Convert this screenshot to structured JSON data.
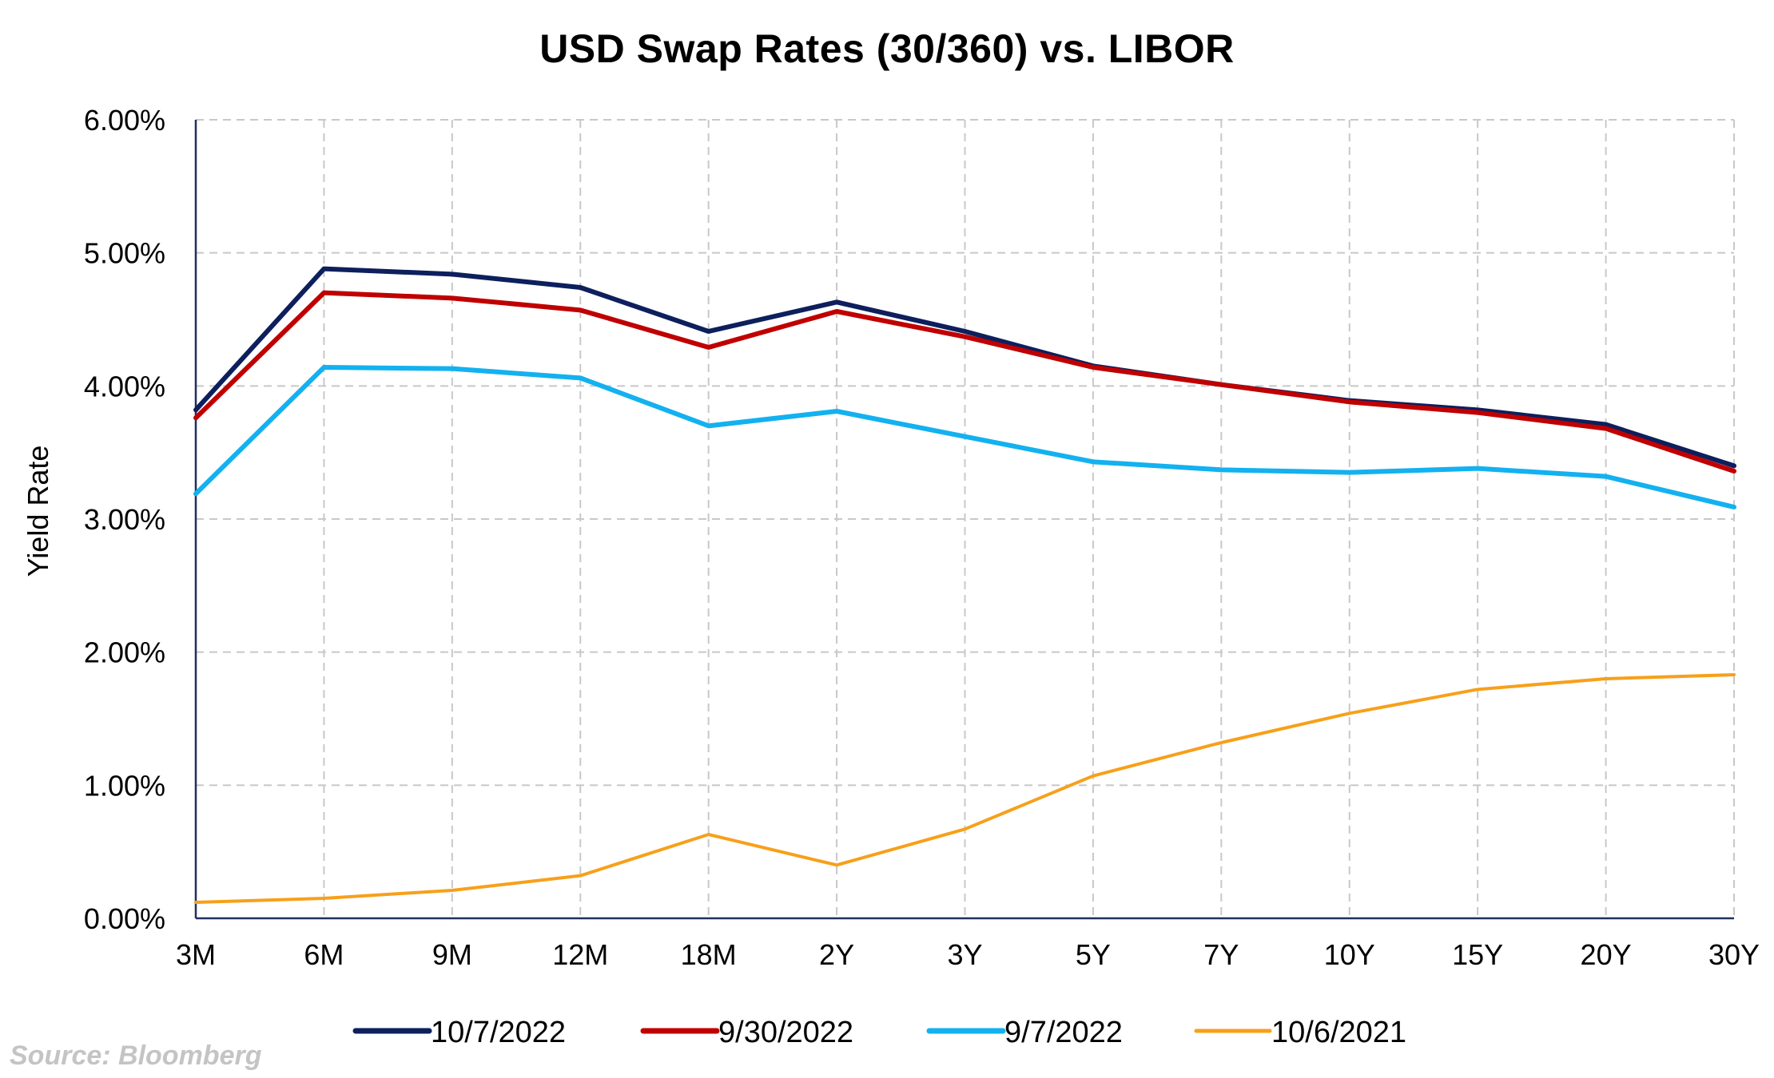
{
  "chart_data": {
    "type": "line",
    "title": "USD Swap Rates (30/360) vs. LIBOR",
    "xlabel": "",
    "ylabel": "Yield Rate",
    "categories": [
      "3M",
      "6M",
      "9M",
      "12M",
      "18M",
      "2Y",
      "3Y",
      "5Y",
      "7Y",
      "10Y",
      "15Y",
      "20Y",
      "30Y"
    ],
    "ylim": [
      0,
      6
    ],
    "yticks": [
      "0.00%",
      "1.00%",
      "2.00%",
      "3.00%",
      "4.00%",
      "5.00%",
      "6.00%"
    ],
    "grid": true,
    "legend_position": "bottom",
    "series": [
      {
        "name": "10/7/2022",
        "color": "#0d1f5c",
        "values": [
          3.82,
          4.88,
          4.84,
          4.74,
          4.41,
          4.63,
          4.41,
          4.15,
          4.01,
          3.89,
          3.82,
          3.71,
          3.4
        ]
      },
      {
        "name": "9/30/2022",
        "color": "#c00000",
        "values": [
          3.76,
          4.7,
          4.66,
          4.57,
          4.29,
          4.56,
          4.37,
          4.14,
          4.01,
          3.88,
          3.8,
          3.68,
          3.36
        ]
      },
      {
        "name": "9/7/2022",
        "color": "#13b1ef",
        "values": [
          3.19,
          4.14,
          4.13,
          4.06,
          3.7,
          3.81,
          3.62,
          3.43,
          3.37,
          3.35,
          3.38,
          3.32,
          3.09
        ]
      },
      {
        "name": "10/6/2021",
        "color": "#f7a01b",
        "values": [
          0.12,
          0.15,
          0.21,
          0.32,
          0.63,
          0.4,
          0.67,
          1.07,
          1.32,
          1.54,
          1.72,
          1.8,
          1.83
        ]
      }
    ]
  },
  "source": "Source: Bloomberg"
}
